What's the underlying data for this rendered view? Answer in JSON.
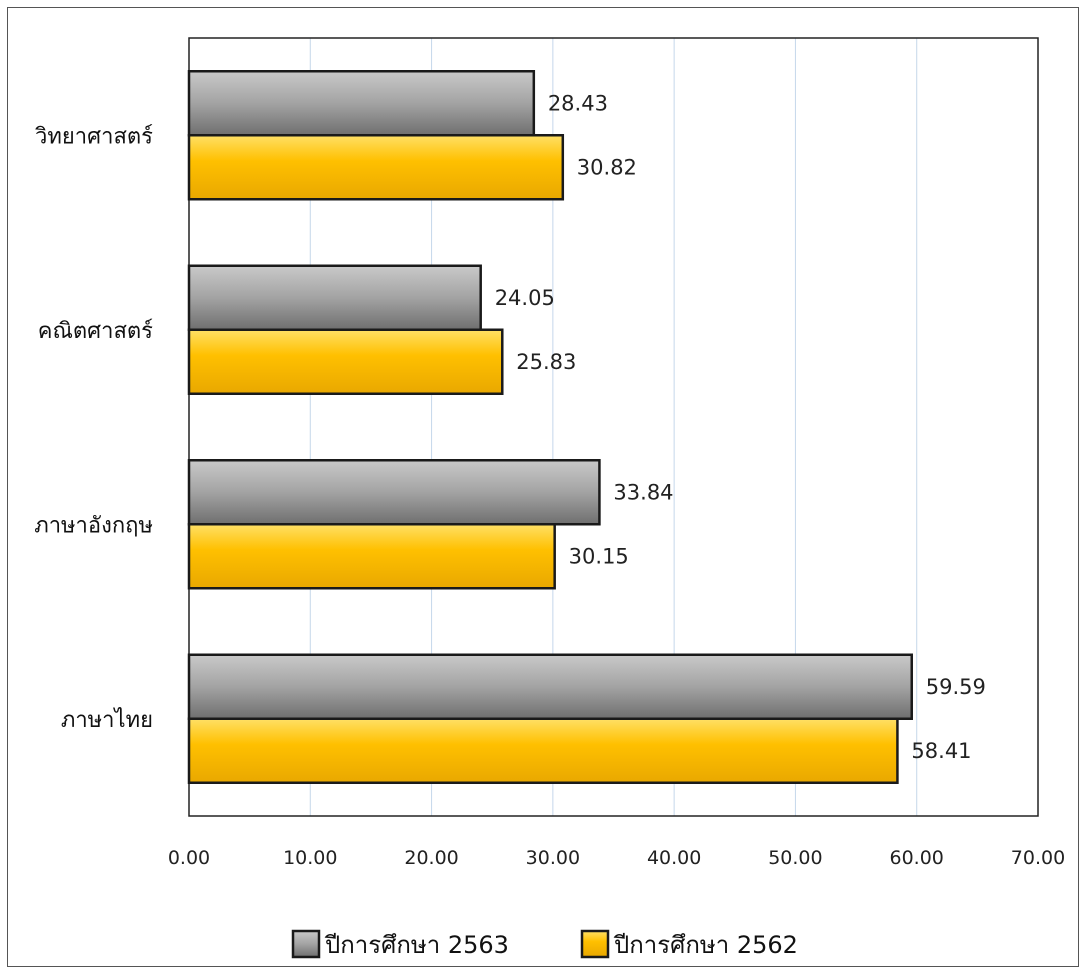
{
  "chart_data": {
    "type": "bar",
    "orientation": "horizontal",
    "categories": [
      "วิทยาศาสตร์",
      "คณิตศาสตร์",
      "ภาษาอังกฤษ",
      "ภาษาไทย"
    ],
    "series": [
      {
        "name": "ปีการศึกษา 2563",
        "values": [
          28.43,
          24.05,
          33.84,
          59.59
        ],
        "color": "#9a9a9a"
      },
      {
        "name": "ปีการศึกษา 2562",
        "values": [
          30.82,
          25.83,
          30.15,
          58.41
        ],
        "color": "#ffc000"
      }
    ],
    "value_labels": [
      [
        "28.43",
        "24.05",
        "33.84",
        "59.59"
      ],
      [
        "30.82",
        "25.83",
        "30.15",
        "58.41"
      ]
    ],
    "xlim": [
      0,
      70
    ],
    "ticks": [
      "0.00",
      "10.00",
      "20.00",
      "30.00",
      "40.00",
      "50.00",
      "60.00",
      "70.00"
    ],
    "grid": true,
    "legend_position": "bottom"
  }
}
